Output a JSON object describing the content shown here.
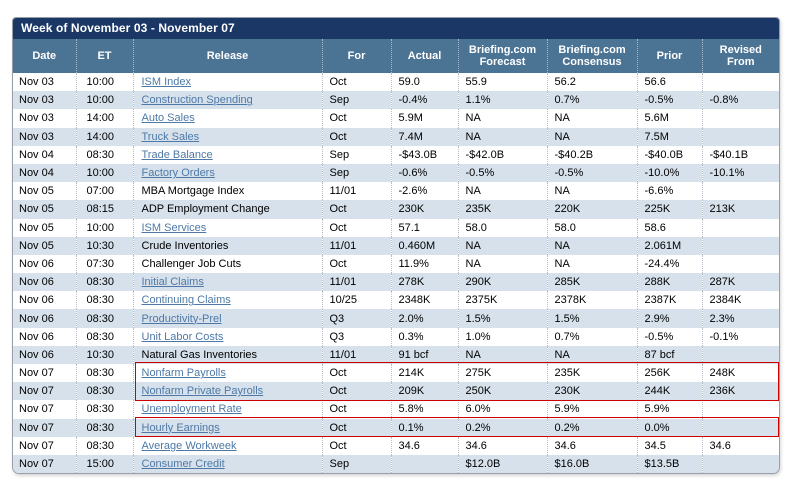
{
  "widget": {
    "title": "Week of November 03 - November 07",
    "columns": [
      {
        "key": "date",
        "label": "Date"
      },
      {
        "key": "et",
        "label": "ET"
      },
      {
        "key": "release",
        "label": "Release"
      },
      {
        "key": "for",
        "label": "For"
      },
      {
        "key": "actual",
        "label": "Actual"
      },
      {
        "key": "forecast",
        "label": "Briefing.com Forecast"
      },
      {
        "key": "consensus",
        "label": "Briefing.com Consensus"
      },
      {
        "key": "prior",
        "label": "Prior"
      },
      {
        "key": "revised",
        "label": "Revised From"
      }
    ],
    "rows": [
      {
        "date": "Nov 03",
        "et": "10:00",
        "release": "ISM Index",
        "is_link": true,
        "for": "Oct",
        "actual": "59.0",
        "forecast": "55.9",
        "consensus": "56.2",
        "prior": "56.6",
        "revised": ""
      },
      {
        "date": "Nov 03",
        "et": "10:00",
        "release": "Construction Spending",
        "is_link": true,
        "for": "Sep",
        "actual": "-0.4%",
        "forecast": "1.1%",
        "consensus": "0.7%",
        "prior": "-0.5%",
        "revised": "-0.8%"
      },
      {
        "date": "Nov 03",
        "et": "14:00",
        "release": "Auto Sales",
        "is_link": true,
        "for": "Oct",
        "actual": "5.9M",
        "forecast": "NA",
        "consensus": "NA",
        "prior": "5.6M",
        "revised": ""
      },
      {
        "date": "Nov 03",
        "et": "14:00",
        "release": "Truck Sales",
        "is_link": true,
        "for": "Oct",
        "actual": "7.4M",
        "forecast": "NA",
        "consensus": "NA",
        "prior": "7.5M",
        "revised": ""
      },
      {
        "date": "Nov 04",
        "et": "08:30",
        "release": "Trade Balance",
        "is_link": true,
        "for": "Sep",
        "actual": "-$43.0B",
        "forecast": "-$42.0B",
        "consensus": "-$40.2B",
        "prior": "-$40.0B",
        "revised": "-$40.1B"
      },
      {
        "date": "Nov 04",
        "et": "10:00",
        "release": "Factory Orders",
        "is_link": true,
        "for": "Sep",
        "actual": "-0.6%",
        "forecast": "-0.5%",
        "consensus": "-0.5%",
        "prior": "-10.0%",
        "revised": "-10.1%"
      },
      {
        "date": "Nov 05",
        "et": "07:00",
        "release": "MBA Mortgage Index",
        "is_link": false,
        "for": "11/01",
        "actual": "-2.6%",
        "forecast": "NA",
        "consensus": "NA",
        "prior": "-6.6%",
        "revised": ""
      },
      {
        "date": "Nov 05",
        "et": "08:15",
        "release": "ADP Employment Change",
        "is_link": false,
        "for": "Oct",
        "actual": "230K",
        "forecast": "235K",
        "consensus": "220K",
        "prior": "225K",
        "revised": "213K"
      },
      {
        "date": "Nov 05",
        "et": "10:00",
        "release": "ISM Services",
        "is_link": true,
        "for": "Oct",
        "actual": "57.1",
        "forecast": "58.0",
        "consensus": "58.0",
        "prior": "58.6",
        "revised": ""
      },
      {
        "date": "Nov 05",
        "et": "10:30",
        "release": "Crude Inventories",
        "is_link": false,
        "for": "11/01",
        "actual": "0.460M",
        "forecast": "NA",
        "consensus": "NA",
        "prior": "2.061M",
        "revised": ""
      },
      {
        "date": "Nov 06",
        "et": "07:30",
        "release": "Challenger Job Cuts",
        "is_link": false,
        "for": "Oct",
        "actual": "11.9%",
        "forecast": "NA",
        "consensus": "NA",
        "prior": "-24.4%",
        "revised": ""
      },
      {
        "date": "Nov 06",
        "et": "08:30",
        "release": "Initial Claims",
        "is_link": true,
        "for": "11/01",
        "actual": "278K",
        "forecast": "290K",
        "consensus": "285K",
        "prior": "288K",
        "revised": "287K"
      },
      {
        "date": "Nov 06",
        "et": "08:30",
        "release": "Continuing Claims",
        "is_link": true,
        "for": "10/25",
        "actual": "2348K",
        "forecast": "2375K",
        "consensus": "2378K",
        "prior": "2387K",
        "revised": "2384K"
      },
      {
        "date": "Nov 06",
        "et": "08:30",
        "release": "Productivity-Prel",
        "is_link": true,
        "for": "Q3",
        "actual": "2.0%",
        "forecast": "1.5%",
        "consensus": "1.5%",
        "prior": "2.9%",
        "revised": "2.3%"
      },
      {
        "date": "Nov 06",
        "et": "08:30",
        "release": "Unit Labor Costs",
        "is_link": true,
        "for": "Q3",
        "actual": "0.3%",
        "forecast": "1.0%",
        "consensus": "0.7%",
        "prior": "-0.5%",
        "revised": "-0.1%"
      },
      {
        "date": "Nov 06",
        "et": "10:30",
        "release": "Natural Gas Inventories",
        "is_link": false,
        "for": "11/01",
        "actual": "91 bcf",
        "forecast": "NA",
        "consensus": "NA",
        "prior": "87 bcf",
        "revised": ""
      },
      {
        "date": "Nov 07",
        "et": "08:30",
        "release": "Nonfarm Payrolls",
        "is_link": true,
        "for": "Oct",
        "actual": "214K",
        "forecast": "275K",
        "consensus": "235K",
        "prior": "256K",
        "revised": "248K"
      },
      {
        "date": "Nov 07",
        "et": "08:30",
        "release": "Nonfarm Private Payrolls",
        "is_link": true,
        "for": "Oct",
        "actual": "209K",
        "forecast": "250K",
        "consensus": "230K",
        "prior": "244K",
        "revised": "236K"
      },
      {
        "date": "Nov 07",
        "et": "08:30",
        "release": "Unemployment Rate",
        "is_link": true,
        "for": "Oct",
        "actual": "5.8%",
        "forecast": "6.0%",
        "consensus": "5.9%",
        "prior": "5.9%",
        "revised": ""
      },
      {
        "date": "Nov 07",
        "et": "08:30",
        "release": "Hourly Earnings",
        "is_link": true,
        "for": "Oct",
        "actual": "0.1%",
        "forecast": "0.2%",
        "consensus": "0.2%",
        "prior": "0.0%",
        "revised": ""
      },
      {
        "date": "Nov 07",
        "et": "08:30",
        "release": "Average Workweek",
        "is_link": true,
        "for": "Oct",
        "actual": "34.6",
        "forecast": "34.6",
        "consensus": "34.6",
        "prior": "34.5",
        "revised": "34.6"
      },
      {
        "date": "Nov 07",
        "et": "15:00",
        "release": "Consumer Credit",
        "is_link": true,
        "for": "Sep",
        "actual": "",
        "forecast": "$12.0B",
        "consensus": "$16.0B",
        "prior": "$13.5B",
        "revised": ""
      }
    ],
    "highlights": [
      {
        "releases": [
          "Nonfarm Payrolls",
          "Nonfarm Private Payrolls"
        ]
      },
      {
        "releases": [
          "Hourly Earnings"
        ]
      }
    ]
  },
  "colors": {
    "title_bar_bg": "#1a3765",
    "header_bg": "#4b7394",
    "alt_row_bg": "#d6e1eb",
    "link": "#4e79a7",
    "highlight_border": "#cc0000",
    "header_text": "#ffffff",
    "body_text": "#000000"
  }
}
